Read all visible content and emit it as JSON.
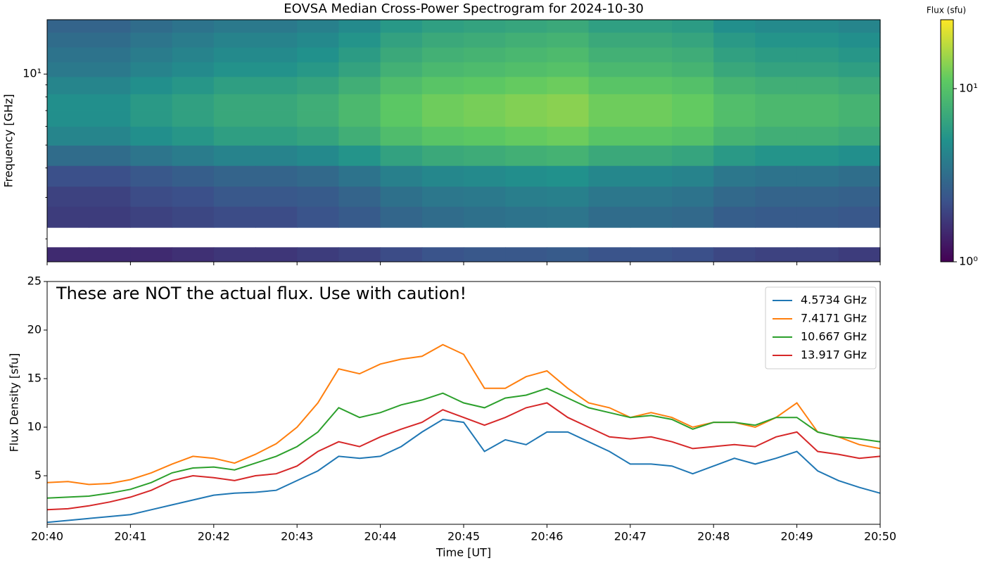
{
  "chart_data": [
    {
      "type": "heatmap",
      "title": "EOVSA Median Cross-Power Spectrogram for 2024-10-30",
      "ylabel": "Frequency [GHz]",
      "log_y": true,
      "ylim": [
        1.6,
        17
      ],
      "yticks": [
        {
          "value": 10,
          "label": "10¹"
        }
      ],
      "y": [
        16,
        14,
        12,
        10.5,
        9,
        7.5,
        6.5,
        5.5,
        4.5,
        3.7,
        3.0,
        2.5,
        2.0,
        1.7
      ],
      "values": [
        [
          2.8,
          2.8,
          3.1,
          3.4,
          3.7,
          3.7,
          4,
          4.6,
          5.5,
          6.1,
          6.4,
          6.7,
          7,
          6.1,
          6.1,
          5.8,
          4.9,
          4.6,
          4.6,
          4.3
        ],
        [
          3.1,
          3.1,
          3.5,
          3.8,
          4.2,
          4.2,
          4.5,
          5.2,
          6.3,
          7,
          7.3,
          7.7,
          8,
          7,
          7,
          6.6,
          5.6,
          5.2,
          5.2,
          4.9
        ],
        [
          3.4,
          3.4,
          3.8,
          4.2,
          4.6,
          4.6,
          5,
          5.8,
          7,
          7.8,
          8.2,
          8.6,
          9,
          7.8,
          7.8,
          7.4,
          6.2,
          5.8,
          5.8,
          5.4
        ],
        [
          3.7,
          3.7,
          4.2,
          4.6,
          5.1,
          5.1,
          5.5,
          6.4,
          7.8,
          8.7,
          9.1,
          9.6,
          10,
          8.7,
          8.7,
          8.2,
          6.9,
          6.4,
          6.4,
          6
        ],
        [
          4.3,
          4.3,
          4.9,
          5.4,
          6,
          6,
          6.5,
          7.6,
          9.3,
          10.4,
          10.9,
          11.5,
          12,
          10.4,
          10.4,
          9.8,
          8.2,
          7.6,
          7.6,
          7.1
        ],
        [
          4.9,
          4.9,
          5.6,
          6.2,
          6.9,
          6.9,
          7.5,
          8.8,
          10.8,
          12.1,
          12.7,
          13.4,
          14,
          12.1,
          12.1,
          11.4,
          9.5,
          8.8,
          8.8,
          8.2
        ],
        [
          4.9,
          4.9,
          5.6,
          6.2,
          6.9,
          6.9,
          7.5,
          8.8,
          10.8,
          12.1,
          12.7,
          13.4,
          14,
          12.1,
          12.1,
          11.4,
          9.5,
          8.8,
          8.8,
          8.2
        ],
        [
          4.3,
          4.3,
          4.9,
          5.4,
          6,
          6,
          6.5,
          7.6,
          9.3,
          10.4,
          10.9,
          11.5,
          12,
          10.4,
          10.4,
          9.8,
          8.2,
          7.6,
          7.6,
          7.1
        ],
        [
          3.1,
          3.1,
          3.5,
          3.8,
          4.2,
          4.2,
          4.5,
          5.2,
          6.3,
          7,
          7.3,
          7.7,
          8,
          7,
          7,
          6.6,
          5.6,
          5.2,
          5.2,
          4.9
        ],
        [
          2.2,
          2.2,
          2.4,
          2.6,
          2.8,
          2.8,
          3,
          3.4,
          4,
          4.4,
          4.6,
          4.8,
          5,
          4.4,
          4.4,
          4.2,
          3.6,
          3.4,
          3.4,
          3.2
        ],
        [
          1.9,
          1.9,
          2.1,
          2.2,
          2.4,
          2.4,
          2.5,
          2.8,
          3.3,
          3.6,
          3.7,
          3.9,
          4,
          3.6,
          3.6,
          3.4,
          3,
          2.8,
          2.8,
          2.7
        ],
        [
          1.8,
          1.8,
          1.9,
          2,
          2.1,
          2.1,
          2.3,
          2.5,
          2.9,
          3.1,
          3.3,
          3.4,
          3.5,
          3.1,
          3.1,
          3,
          2.6,
          2.5,
          2.5,
          2.4
        ],
        [
          null,
          null,
          null,
          null,
          null,
          null,
          null,
          null,
          null,
          null,
          null,
          null,
          null,
          null,
          null,
          null,
          null,
          null,
          null,
          null
        ],
        [
          1.5,
          1.5,
          1.5,
          1.6,
          1.7,
          1.7,
          1.8,
          1.9,
          2.1,
          2.3,
          2.4,
          2.4,
          2.5,
          2.3,
          2.3,
          2.2,
          2,
          1.9,
          1.9,
          1.8
        ]
      ],
      "colorbar": {
        "label": "Flux (sfu)",
        "colormap": "viridis",
        "log": true,
        "zlim": [
          1,
          25
        ],
        "zticks": [
          {
            "value": 1,
            "label": "10⁰"
          },
          {
            "value": 10,
            "label": "10¹"
          }
        ]
      }
    },
    {
      "type": "line",
      "annotation": "These are NOT the actual flux. Use with caution!",
      "xlabel": "Time [UT]",
      "ylabel": "Flux Density [sfu]",
      "ylim": [
        0,
        25
      ],
      "yticks": [
        5,
        10,
        15,
        20,
        25
      ],
      "legend": "upper right",
      "categories": [
        "20:40",
        null,
        null,
        null,
        "20:41",
        null,
        null,
        null,
        "20:42",
        null,
        null,
        null,
        "20:43",
        null,
        null,
        null,
        "20:44",
        null,
        null,
        null,
        "20:45",
        null,
        null,
        null,
        "20:46",
        null,
        null,
        null,
        "20:47",
        null,
        null,
        null,
        "20:48",
        null,
        null,
        null,
        "20:49",
        null,
        null,
        null,
        "20:50"
      ],
      "series": [
        {
          "name": "4.5734 GHz",
          "color": "#1f77b4",
          "values": [
            0.2,
            0.4,
            0.6,
            0.8,
            1.0,
            1.5,
            2,
            2.5,
            3,
            3.2,
            3.3,
            3.5,
            4.5,
            5.5,
            7,
            6.8,
            7,
            8,
            9.5,
            10.8,
            10.5,
            7.5,
            8.7,
            8.2,
            9.5,
            9.5,
            8.5,
            7.5,
            6.2,
            6.2,
            6,
            5.2,
            6,
            6.8,
            6.2,
            6.8,
            7.5,
            5.5,
            4.5,
            3.8,
            3.2
          ]
        },
        {
          "name": "7.4171 GHz",
          "color": "#ff7f0e",
          "values": [
            4.3,
            4.4,
            4.1,
            4.2,
            4.6,
            5.3,
            6.2,
            7,
            6.8,
            6.3,
            7.2,
            8.3,
            10,
            12.5,
            16,
            15.5,
            16.5,
            17,
            17.3,
            18.5,
            17.5,
            14,
            14,
            15.2,
            15.8,
            14,
            12.5,
            12,
            11,
            11.5,
            11,
            10,
            10.5,
            10.5,
            10,
            11,
            12.5,
            9.5,
            9,
            8.2,
            7.8
          ]
        },
        {
          "name": "10.667 GHz",
          "color": "#2ca02c",
          "values": [
            2.7,
            2.8,
            2.9,
            3.2,
            3.6,
            4.3,
            5.3,
            5.8,
            5.9,
            5.6,
            6.3,
            7,
            8,
            9.5,
            12,
            11,
            11.5,
            12.3,
            12.8,
            13.5,
            12.5,
            12,
            13,
            13.3,
            14,
            13,
            12,
            11.5,
            11,
            11.2,
            10.8,
            9.8,
            10.5,
            10.5,
            10.2,
            11,
            11,
            9.5,
            9,
            8.8,
            8.5
          ]
        },
        {
          "name": "13.917 GHz",
          "color": "#d62728",
          "values": [
            1.5,
            1.6,
            1.9,
            2.3,
            2.8,
            3.5,
            4.5,
            5,
            4.8,
            4.5,
            5,
            5.2,
            6,
            7.5,
            8.5,
            8,
            9,
            9.8,
            10.5,
            11.8,
            11,
            10.2,
            11,
            12,
            12.5,
            11,
            10,
            9,
            8.8,
            9,
            8.5,
            7.8,
            8,
            8.2,
            8,
            9,
            9.5,
            7.5,
            7.2,
            6.8,
            7
          ]
        }
      ]
    }
  ]
}
